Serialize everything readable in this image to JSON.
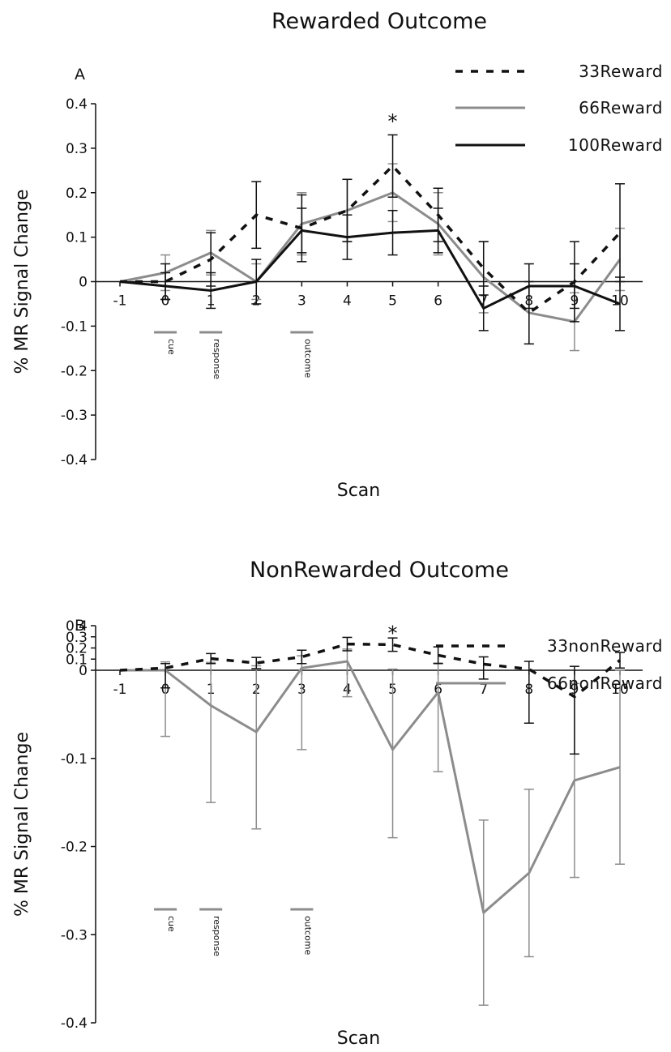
{
  "chart_data": [
    {
      "panel": "A",
      "type": "line",
      "title": "Rewarded Outcome",
      "xlabel": "Scan",
      "ylabel": "% MR Signal Change",
      "x": [
        -1,
        0,
        1,
        2,
        3,
        4,
        5,
        6,
        7,
        8,
        9,
        10
      ],
      "x_tick_labels": [
        "-1",
        "0",
        "1",
        "2",
        "3",
        "4",
        "5",
        "6",
        "7",
        "8",
        "9",
        "10"
      ],
      "y_tick_labels": [
        "0.4",
        "0.3",
        "0.2",
        "0.1",
        "0",
        "-0.1",
        "-0.2",
        "-0.3",
        "-0.4"
      ],
      "ylim": [
        -0.4,
        0.4
      ],
      "xlim": [
        -1,
        10
      ],
      "grid": false,
      "legend_position": "top-right",
      "series": [
        {
          "name": "33Reward",
          "style": "dashed",
          "color": "#111111",
          "values": [
            0.0,
            0.0,
            0.05,
            0.15,
            0.12,
            0.16,
            0.26,
            0.15,
            0.03,
            -0.07,
            0.0,
            0.11
          ],
          "errors": [
            0.0,
            0.04,
            0.06,
            0.075,
            0.075,
            0.07,
            0.07,
            0.06,
            0.06,
            0.07,
            0.09,
            0.11
          ]
        },
        {
          "name": "66Reward",
          "style": "solid",
          "color": "#8c8c8c",
          "values": [
            0.0,
            0.02,
            0.065,
            0.0,
            0.13,
            0.16,
            0.2,
            0.13,
            0.01,
            -0.07,
            -0.09,
            0.05
          ],
          "errors": [
            0.0,
            0.04,
            0.05,
            0.04,
            0.07,
            0.07,
            0.065,
            0.07,
            0.08,
            0.07,
            0.065,
            0.07
          ]
        },
        {
          "name": "100Reward",
          "style": "solid",
          "color": "#111111",
          "values": [
            0.0,
            -0.01,
            -0.02,
            0.0,
            0.115,
            0.1,
            0.11,
            0.115,
            -0.06,
            -0.01,
            -0.01,
            -0.05
          ],
          "errors": [
            0.0,
            0.03,
            0.04,
            0.05,
            0.05,
            0.05,
            0.05,
            0.05,
            0.05,
            0.05,
            0.05,
            0.06
          ]
        }
      ],
      "annotations": {
        "significance": {
          "text": "*",
          "x": 5,
          "y": 0.36
        },
        "event_markers": [
          {
            "label": "cue",
            "x": 0
          },
          {
            "label": "response",
            "x": 1
          },
          {
            "label": "outcome",
            "x": 3
          }
        ]
      }
    },
    {
      "panel": "B",
      "type": "line",
      "title": "NonRewarded Outcome",
      "xlabel": "Scan",
      "ylabel": "% MR Signal Change",
      "x": [
        -1,
        0,
        1,
        2,
        3,
        4,
        5,
        6,
        7,
        8,
        9,
        10
      ],
      "x_tick_labels": [
        "-1",
        "0",
        "1",
        "2",
        "3",
        "4",
        "5",
        "6",
        "7",
        "8",
        "9",
        "10"
      ],
      "y_tick_labels": [
        "0.4",
        "0.3",
        "0.2",
        "0.1",
        "0",
        "-0.1",
        "-0.2",
        "-0.3",
        "-0.4"
      ],
      "ylim": [
        -0.4,
        0.4
      ],
      "xlim": [
        -1,
        10
      ],
      "grid": false,
      "legend_position": "top-right",
      "series": [
        {
          "name": "33nonReward",
          "style": "dashed",
          "color": "#111111",
          "values": [
            0.0,
            0.02,
            0.105,
            0.065,
            0.12,
            0.235,
            0.23,
            0.135,
            0.055,
            0.01,
            -0.03,
            0.09
          ],
          "errors": [
            0.0,
            0.04,
            0.045,
            0.05,
            0.06,
            0.06,
            0.06,
            0.075,
            0.065,
            0.07,
            0.065,
            0.07
          ]
        },
        {
          "name": "66nonReward",
          "style": "solid",
          "color": "#8c8c8c",
          "values": [
            0.0,
            0.0,
            -0.04,
            -0.07,
            0.02,
            0.08,
            -0.09,
            -0.025,
            -0.275,
            -0.23,
            -0.125,
            -0.11
          ],
          "errors": [
            0.0,
            0.075,
            0.11,
            0.11,
            0.11,
            0.11,
            0.1,
            0.09,
            0.105,
            0.095,
            0.11,
            0.11
          ]
        }
      ],
      "annotations": {
        "significance": {
          "text": "*",
          "x": 5,
          "y": 0.33
        },
        "event_markers": [
          {
            "label": "cue",
            "x": 0
          },
          {
            "label": "response",
            "x": 1
          },
          {
            "label": "outcome",
            "x": 3
          }
        ]
      }
    }
  ]
}
